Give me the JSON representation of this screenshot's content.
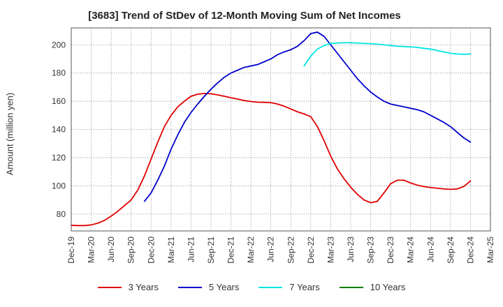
{
  "chart_data": {
    "type": "line",
    "title": "[3683]  Trend of StDev of 12-Month Moving Sum of Net Incomes",
    "ylabel": "Amount (million yen)",
    "xlabel": "",
    "ylim": [
      68,
      212
    ],
    "yticks": [
      80,
      100,
      120,
      140,
      160,
      180,
      200
    ],
    "x_ticks": [
      "Dec-19",
      "Mar-20",
      "Jun-20",
      "Sep-20",
      "Dec-20",
      "Mar-21",
      "Jun-21",
      "Sep-21",
      "Dec-21",
      "Mar-22",
      "Jun-22",
      "Sep-22",
      "Dec-22",
      "Mar-23",
      "Jun-23",
      "Sep-23",
      "Dec-23",
      "Mar-24",
      "Jun-24",
      "Sep-24",
      "Dec-24",
      "Mar-25"
    ],
    "grid": true,
    "legend_position": "bottom",
    "series": [
      {
        "name": "3 Years",
        "color": "#e00000",
        "points": [
          [
            "Dec-19",
            72
          ],
          [
            "Jan-20",
            71.8
          ],
          [
            "Feb-20",
            71.8
          ],
          [
            "Mar-20",
            72.3
          ],
          [
            "Apr-20",
            73.5
          ],
          [
            "May-20",
            75.5
          ],
          [
            "Jun-20",
            78.5
          ],
          [
            "Jul-20",
            82
          ],
          [
            "Aug-20",
            86
          ],
          [
            "Sep-20",
            90
          ],
          [
            "Oct-20",
            97
          ],
          [
            "Nov-20",
            107
          ],
          [
            "Dec-20",
            119
          ],
          [
            "Jan-21",
            131
          ],
          [
            "Feb-21",
            142
          ],
          [
            "Mar-21",
            150
          ],
          [
            "Apr-21",
            156
          ],
          [
            "May-21",
            160
          ],
          [
            "Jun-21",
            163.5
          ],
          [
            "Jul-21",
            165
          ],
          [
            "Aug-21",
            165.5
          ],
          [
            "Sep-21",
            165.3
          ],
          [
            "Oct-21",
            164.5
          ],
          [
            "Nov-21",
            163.5
          ],
          [
            "Dec-21",
            162.5
          ],
          [
            "Jan-22",
            161.5
          ],
          [
            "Feb-22",
            160.5
          ],
          [
            "Mar-22",
            159.8
          ],
          [
            "Apr-22",
            159.3
          ],
          [
            "May-22",
            159.2
          ],
          [
            "Jun-22",
            159
          ],
          [
            "Jul-22",
            158
          ],
          [
            "Aug-22",
            156.5
          ],
          [
            "Sep-22",
            154.5
          ],
          [
            "Oct-22",
            152.5
          ],
          [
            "Nov-22",
            151
          ],
          [
            "Dec-22",
            149
          ],
          [
            "Jan-23",
            142
          ],
          [
            "Feb-23",
            132
          ],
          [
            "Mar-23",
            121
          ],
          [
            "Apr-23",
            112
          ],
          [
            "May-23",
            105
          ],
          [
            "Jun-23",
            99
          ],
          [
            "Jul-23",
            94
          ],
          [
            "Aug-23",
            90
          ],
          [
            "Sep-23",
            88
          ],
          [
            "Oct-23",
            89
          ],
          [
            "Nov-23",
            95
          ],
          [
            "Dec-23",
            101.5
          ],
          [
            "Jan-24",
            104
          ],
          [
            "Feb-24",
            104
          ],
          [
            "Mar-24",
            102
          ],
          [
            "Apr-24",
            100.5
          ],
          [
            "May-24",
            99.5
          ],
          [
            "Jun-24",
            98.8
          ],
          [
            "Jul-24",
            98.3
          ],
          [
            "Aug-24",
            97.8
          ],
          [
            "Sep-24",
            97.5
          ],
          [
            "Oct-24",
            97.8
          ],
          [
            "Nov-24",
            99.5
          ],
          [
            "Dec-24",
            103.5
          ]
        ]
      },
      {
        "name": "5 Years",
        "color": "#0000cc",
        "points": [
          [
            "Nov-20",
            89
          ],
          [
            "Dec-20",
            95
          ],
          [
            "Jan-21",
            104
          ],
          [
            "Feb-21",
            114
          ],
          [
            "Mar-21",
            126
          ],
          [
            "Apr-21",
            136
          ],
          [
            "May-21",
            145
          ],
          [
            "Jun-21",
            152
          ],
          [
            "Jul-21",
            158
          ],
          [
            "Aug-21",
            163.5
          ],
          [
            "Sep-21",
            168.5
          ],
          [
            "Oct-21",
            173
          ],
          [
            "Nov-21",
            177
          ],
          [
            "Dec-21",
            180
          ],
          [
            "Jan-22",
            182
          ],
          [
            "Feb-22",
            184
          ],
          [
            "Mar-22",
            185
          ],
          [
            "Apr-22",
            186
          ],
          [
            "May-22",
            188
          ],
          [
            "Jun-22",
            190
          ],
          [
            "Jul-22",
            193
          ],
          [
            "Aug-22",
            195
          ],
          [
            "Sep-22",
            196.5
          ],
          [
            "Oct-22",
            199
          ],
          [
            "Nov-22",
            203
          ],
          [
            "Dec-22",
            208
          ],
          [
            "Jan-23",
            209
          ],
          [
            "Feb-23",
            206
          ],
          [
            "Mar-23",
            200
          ],
          [
            "Apr-23",
            194
          ],
          [
            "May-23",
            188
          ],
          [
            "Jun-23",
            182
          ],
          [
            "Jul-23",
            176
          ],
          [
            "Aug-23",
            171
          ],
          [
            "Sep-23",
            166.5
          ],
          [
            "Oct-23",
            163
          ],
          [
            "Nov-23",
            160
          ],
          [
            "Dec-23",
            158
          ],
          [
            "Jan-24",
            157
          ],
          [
            "Feb-24",
            156
          ],
          [
            "Mar-24",
            155
          ],
          [
            "Apr-24",
            154
          ],
          [
            "May-24",
            152.5
          ],
          [
            "Jun-24",
            150
          ],
          [
            "Jul-24",
            147.5
          ],
          [
            "Aug-24",
            145
          ],
          [
            "Sep-24",
            142
          ],
          [
            "Oct-24",
            138
          ],
          [
            "Nov-24",
            134
          ],
          [
            "Dec-24",
            131
          ]
        ]
      },
      {
        "name": "7 Years",
        "color": "#00e5e5",
        "points": [
          [
            "Nov-22",
            185
          ],
          [
            "Dec-22",
            192
          ],
          [
            "Jan-23",
            197
          ],
          [
            "Feb-23",
            199.5
          ],
          [
            "Mar-23",
            201
          ],
          [
            "Apr-23",
            201.3
          ],
          [
            "May-23",
            201.5
          ],
          [
            "Jun-23",
            201.5
          ],
          [
            "Jul-23",
            201.3
          ],
          [
            "Aug-23",
            201
          ],
          [
            "Sep-23",
            200.8
          ],
          [
            "Oct-23",
            200.5
          ],
          [
            "Nov-23",
            200
          ],
          [
            "Dec-23",
            199.5
          ],
          [
            "Jan-24",
            199
          ],
          [
            "Feb-24",
            198.8
          ],
          [
            "Mar-24",
            198.5
          ],
          [
            "Apr-24",
            198.2
          ],
          [
            "May-24",
            197.5
          ],
          [
            "Jun-24",
            197
          ],
          [
            "Jul-24",
            196
          ],
          [
            "Aug-24",
            195
          ],
          [
            "Sep-24",
            194
          ],
          [
            "Oct-24",
            193.5
          ],
          [
            "Nov-24",
            193.3
          ],
          [
            "Dec-24",
            193.5
          ]
        ]
      },
      {
        "name": "10 Years",
        "color": "#008000",
        "points": []
      }
    ]
  }
}
